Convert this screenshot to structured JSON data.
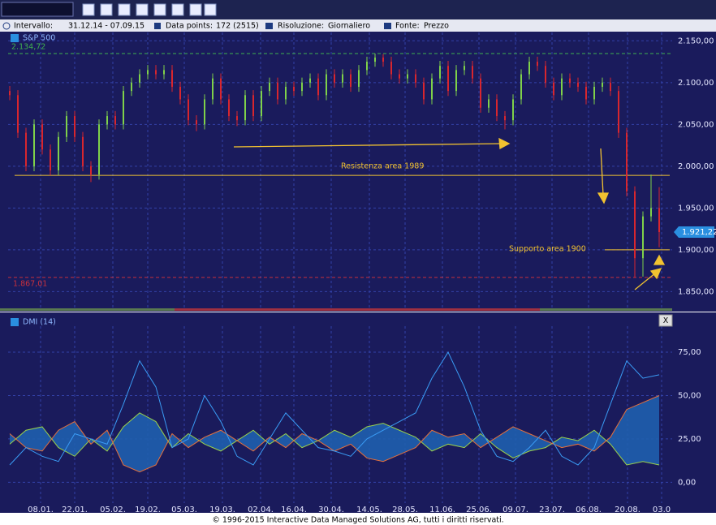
{
  "info_bar": {
    "interval_label": "Intervallo:",
    "interval": "31.12.14 - 07.09.15",
    "points_label": "Data points:",
    "points": "172 (2515)",
    "resolution_label": "Risoluzione:",
    "resolution": "Giornaliero",
    "source_label": "Fonte:",
    "source": "Prezzo"
  },
  "chart_data": [
    {
      "type": "ohlc",
      "title": "S&P 500",
      "up_color": "#7fd14a",
      "down_color": "#d8262e",
      "open": [
        2090,
        2085,
        2040,
        2000,
        2050,
        2020,
        1995,
        2035,
        2060,
        2035,
        2000,
        1990,
        2050,
        2060,
        2050,
        2090,
        2100,
        2110,
        2115,
        2110,
        2115,
        2095,
        2080,
        2055,
        2050,
        2080,
        2105,
        2080,
        2060,
        2055,
        2085,
        2060,
        2090,
        2100,
        2080,
        2095,
        2090,
        2100,
        2105,
        2085,
        2110,
        2100,
        2110,
        2095,
        2115,
        2125,
        2130,
        2125,
        2110,
        2105,
        2110,
        2100,
        2080,
        2105,
        2120,
        2090,
        2115,
        2120,
        2105,
        2070,
        2080,
        2060,
        2055,
        2080,
        2110,
        2125,
        2120,
        2100,
        2085,
        2105,
        2100,
        2095,
        2080,
        2095,
        2100,
        2090,
        2040,
        1970,
        1890,
        1940,
        1950
      ],
      "high": [
        2096,
        2091,
        2046,
        2056,
        2056,
        2026,
        2041,
        2066,
        2066,
        2041,
        2006,
        2056,
        2066,
        2066,
        2096,
        2106,
        2116,
        2121,
        2121,
        2121,
        2121,
        2101,
        2086,
        2061,
        2086,
        2111,
        2111,
        2086,
        2066,
        2091,
        2091,
        2096,
        2106,
        2106,
        2101,
        2101,
        2106,
        2111,
        2111,
        2116,
        2116,
        2116,
        2116,
        2121,
        2131,
        2134.72,
        2134,
        2131,
        2116,
        2116,
        2116,
        2106,
        2111,
        2126,
        2126,
        2121,
        2126,
        2126,
        2111,
        2086,
        2086,
        2066,
        2086,
        2116,
        2131,
        2131,
        2126,
        2106,
        2111,
        2111,
        2106,
        2101,
        2101,
        2106,
        2106,
        2096,
        2046,
        1976,
        1946,
        1990,
        1975
      ],
      "low": [
        2079,
        2034,
        1994,
        1994,
        2014,
        1989,
        1989,
        2029,
        2029,
        1994,
        1981,
        1984,
        2044,
        2044,
        2044,
        2084,
        2094,
        2104,
        2104,
        2104,
        2089,
        2074,
        2049,
        2042,
        2044,
        2074,
        2074,
        2054,
        2048,
        2049,
        2054,
        2054,
        2084,
        2074,
        2074,
        2084,
        2084,
        2094,
        2079,
        2079,
        2094,
        2094,
        2089,
        2089,
        2109,
        2119,
        2119,
        2104,
        2099,
        2099,
        2094,
        2074,
        2074,
        2099,
        2084,
        2084,
        2109,
        2099,
        2064,
        2064,
        2054,
        2044,
        2049,
        2074,
        2104,
        2114,
        2094,
        2079,
        2079,
        2094,
        2089,
        2074,
        2074,
        2089,
        2084,
        2034,
        1964,
        1867.01,
        1868,
        1934,
        1903
      ],
      "close": [
        2085,
        2040,
        2000,
        2050,
        2020,
        1995,
        2035,
        2060,
        2035,
        2000,
        1990,
        2050,
        2060,
        2050,
        2090,
        2100,
        2110,
        2115,
        2110,
        2115,
        2095,
        2080,
        2055,
        2050,
        2080,
        2105,
        2080,
        2060,
        2055,
        2085,
        2060,
        2090,
        2100,
        2080,
        2095,
        2090,
        2100,
        2105,
        2085,
        2110,
        2100,
        2110,
        2095,
        2115,
        2125,
        2130,
        2125,
        2110,
        2105,
        2110,
        2100,
        2080,
        2105,
        2120,
        2090,
        2115,
        2120,
        2105,
        2070,
        2080,
        2060,
        2055,
        2080,
        2110,
        2125,
        2120,
        2100,
        2085,
        2105,
        2100,
        2095,
        2080,
        2095,
        2100,
        2090,
        2040,
        1970,
        1890,
        1940,
        1950,
        1921.22
      ],
      "ylim": [
        1830,
        2160
      ],
      "yticks": [
        {
          "value": 1850,
          "label": "1.850,00"
        },
        {
          "value": 1900,
          "label": "1.900,00"
        },
        {
          "value": 1950,
          "label": "1.950,00"
        },
        {
          "value": 2000,
          "label": "2.000,00"
        },
        {
          "value": 2050,
          "label": "2.050,00"
        },
        {
          "value": 2100,
          "label": "2.100,00"
        },
        {
          "value": 2150,
          "label": "2.150,00"
        }
      ],
      "xlim": [
        -0.2,
        81.6
      ],
      "xticks": [
        {
          "value": 3.8,
          "label": "08.01."
        },
        {
          "value": 8.0,
          "label": "22.01."
        },
        {
          "value": 12.7,
          "label": "05.02."
        },
        {
          "value": 17.0,
          "label": "19.02."
        },
        {
          "value": 21.5,
          "label": "05.03."
        },
        {
          "value": 26.2,
          "label": "19.03."
        },
        {
          "value": 30.9,
          "label": "02.04."
        },
        {
          "value": 35.0,
          "label": "16.04."
        },
        {
          "value": 39.6,
          "label": "30.04."
        },
        {
          "value": 44.3,
          "label": "14.05."
        },
        {
          "value": 48.7,
          "label": "28.05."
        },
        {
          "value": 53.3,
          "label": "11.06."
        },
        {
          "value": 57.8,
          "label": "25.06."
        },
        {
          "value": 62.3,
          "label": "09.07."
        },
        {
          "value": 66.8,
          "label": "23.07."
        },
        {
          "value": 71.3,
          "label": "06.08."
        },
        {
          "value": 76.1,
          "label": "20.08."
        },
        {
          "value": 80.3,
          "label": "03.0"
        }
      ],
      "grid": true,
      "hlines": [
        {
          "value": 2134.72,
          "label": "2.134,72",
          "color": "#3fb04f",
          "dashed": true
        },
        {
          "value": 1867.01,
          "label": "1.867,01",
          "color": "#c8303c",
          "dashed": true
        },
        {
          "value": 1989,
          "label": "Resistenza area 1989",
          "color": "#f2c230",
          "dashed": false
        },
        {
          "value": 1900,
          "label": "Supporto area 1900",
          "color": "#f2c230",
          "dashed": false
        }
      ],
      "last_price": {
        "value": 1921.22,
        "label": "1.921,22",
        "color": "#2a8fe0"
      }
    },
    {
      "type": "line",
      "title": "DMI (14)",
      "close_button": "X",
      "fill_color": "#1f5fae",
      "series": [
        {
          "color": "#9bd24a",
          "values": [
            22,
            30,
            32,
            20,
            15,
            25,
            18,
            32,
            40,
            35,
            20,
            28,
            22,
            18,
            24,
            30,
            22,
            28,
            20,
            24,
            30,
            26,
            32,
            34,
            30,
            26,
            18,
            22,
            20,
            28,
            20,
            14,
            18,
            20,
            26,
            24,
            30,
            22,
            10,
            12,
            10
          ]
        },
        {
          "color": "#e8703a",
          "values": [
            28,
            20,
            18,
            30,
            35,
            22,
            30,
            10,
            6,
            10,
            28,
            20,
            26,
            30,
            24,
            18,
            26,
            20,
            28,
            24,
            18,
            22,
            14,
            12,
            16,
            20,
            30,
            26,
            28,
            20,
            26,
            32,
            28,
            24,
            20,
            22,
            18,
            26,
            42,
            46,
            50
          ]
        },
        {
          "color": "#3a9cf5",
          "values": [
            10,
            20,
            15,
            12,
            28,
            25,
            22,
            45,
            70,
            55,
            20,
            25,
            50,
            35,
            15,
            10,
            25,
            40,
            30,
            20,
            18,
            15,
            25,
            30,
            35,
            40,
            60,
            75,
            55,
            30,
            15,
            12,
            20,
            30,
            15,
            10,
            20,
            45,
            70,
            60,
            62
          ]
        }
      ],
      "ylim": [
        -12,
        90
      ],
      "yticks": [
        {
          "value": 0,
          "label": "0,00"
        },
        {
          "value": 25,
          "label": "25,00"
        },
        {
          "value": 50,
          "label": "50,00"
        },
        {
          "value": 75,
          "label": "75,00"
        }
      ],
      "grid": true
    }
  ],
  "footer": "© 1996-2015 Interactive Data Managed Solutions AG, tutti i diritti riservati."
}
